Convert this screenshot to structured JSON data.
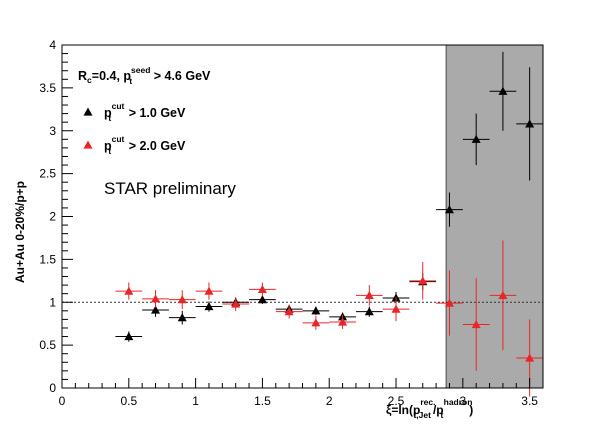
{
  "chart_data": {
    "type": "scatter",
    "xlim": [
      0,
      3.6
    ],
    "ylim": [
      0,
      4
    ],
    "x_ticks": [
      "0",
      "0.5",
      "1",
      "1.5",
      "2",
      "2.5",
      "3",
      "3.5"
    ],
    "y_ticks": [
      "0",
      "0.5",
      "1",
      "1.5",
      "2",
      "2.5",
      "3",
      "3.5",
      "4"
    ],
    "xlabel": {
      "main": "ξ=ln(p",
      "sup1": "rec.",
      "sub1": "t,Jet",
      "mid": "/p",
      "sup2": "hadron",
      "sub2": "t",
      "end": ")"
    },
    "ylabel": "Au+Au 0-20%/p+p",
    "reference_line_y": 1.0,
    "shaded_region_x": [
      2.875,
      3.6
    ],
    "header": {
      "r": "R",
      "r_sub": "c",
      "mid": "=0.4, p",
      "sup": "seed",
      "sub": "t",
      "end": " > 4.6 GeV"
    },
    "annotation": "STAR preliminary",
    "series": [
      {
        "name": "pt cut > 1.0 GeV",
        "legend_sup": "cut",
        "legend_sub": "t",
        "legend_end": " > 1.0 GeV",
        "color": "#000000",
        "points": [
          {
            "x": 0.5,
            "y": 0.6,
            "xerr": 0.1,
            "yerr": 0.06
          },
          {
            "x": 0.7,
            "y": 0.91,
            "xerr": 0.1,
            "yerr": 0.08
          },
          {
            "x": 0.9,
            "y": 0.82,
            "xerr": 0.1,
            "yerr": 0.08
          },
          {
            "x": 1.1,
            "y": 0.95,
            "xerr": 0.1,
            "yerr": 0.06
          },
          {
            "x": 1.3,
            "y": 1.0,
            "xerr": 0.1,
            "yerr": 0.05
          },
          {
            "x": 1.5,
            "y": 1.03,
            "xerr": 0.1,
            "yerr": 0.05
          },
          {
            "x": 1.7,
            "y": 0.92,
            "xerr": 0.1,
            "yerr": 0.05
          },
          {
            "x": 1.9,
            "y": 0.9,
            "xerr": 0.1,
            "yerr": 0.05
          },
          {
            "x": 2.1,
            "y": 0.83,
            "xerr": 0.1,
            "yerr": 0.05
          },
          {
            "x": 2.3,
            "y": 0.89,
            "xerr": 0.1,
            "yerr": 0.06
          },
          {
            "x": 2.5,
            "y": 1.05,
            "xerr": 0.1,
            "yerr": 0.07
          },
          {
            "x": 2.7,
            "y": 1.24,
            "xerr": 0.1,
            "yerr": 0.1
          },
          {
            "x": 2.9,
            "y": 2.08,
            "xerr": 0.1,
            "yerr": 0.2
          },
          {
            "x": 3.1,
            "y": 2.9,
            "xerr": 0.1,
            "yerr": 0.3
          },
          {
            "x": 3.3,
            "y": 3.46,
            "xerr": 0.1,
            "yerr": 0.46
          },
          {
            "x": 3.5,
            "y": 3.08,
            "xerr": 0.1,
            "yerr": 0.66
          }
        ]
      },
      {
        "name": "pt cut > 2.0 GeV",
        "legend_sup": "cut",
        "legend_sub": "t",
        "legend_end": " > 2.0 GeV",
        "color": "#e8262a",
        "points": [
          {
            "x": 0.5,
            "y": 1.13,
            "xerr": 0.1,
            "yerr": 0.1
          },
          {
            "x": 0.7,
            "y": 1.04,
            "xerr": 0.1,
            "yerr": 0.1
          },
          {
            "x": 0.9,
            "y": 1.03,
            "xerr": 0.1,
            "yerr": 0.11
          },
          {
            "x": 1.1,
            "y": 1.13,
            "xerr": 0.1,
            "yerr": 0.1
          },
          {
            "x": 1.3,
            "y": 0.98,
            "xerr": 0.1,
            "yerr": 0.08
          },
          {
            "x": 1.5,
            "y": 1.15,
            "xerr": 0.1,
            "yerr": 0.08
          },
          {
            "x": 1.7,
            "y": 0.89,
            "xerr": 0.1,
            "yerr": 0.08
          },
          {
            "x": 1.9,
            "y": 0.76,
            "xerr": 0.1,
            "yerr": 0.08
          },
          {
            "x": 2.1,
            "y": 0.77,
            "xerr": 0.1,
            "yerr": 0.08
          },
          {
            "x": 2.3,
            "y": 1.08,
            "xerr": 0.1,
            "yerr": 0.12
          },
          {
            "x": 2.5,
            "y": 0.92,
            "xerr": 0.1,
            "yerr": 0.14
          },
          {
            "x": 2.7,
            "y": 1.25,
            "xerr": 0.1,
            "yerr": 0.22
          },
          {
            "x": 2.9,
            "y": 0.99,
            "xerr": 0.1,
            "yerr": 0.38
          },
          {
            "x": 3.1,
            "y": 0.74,
            "xerr": 0.1,
            "yerr": 0.54
          },
          {
            "x": 3.3,
            "y": 1.08,
            "xerr": 0.1,
            "yerr": 0.64
          },
          {
            "x": 3.5,
            "y": 0.35,
            "xerr": 0.1,
            "yerr": 0.45
          }
        ]
      }
    ]
  }
}
